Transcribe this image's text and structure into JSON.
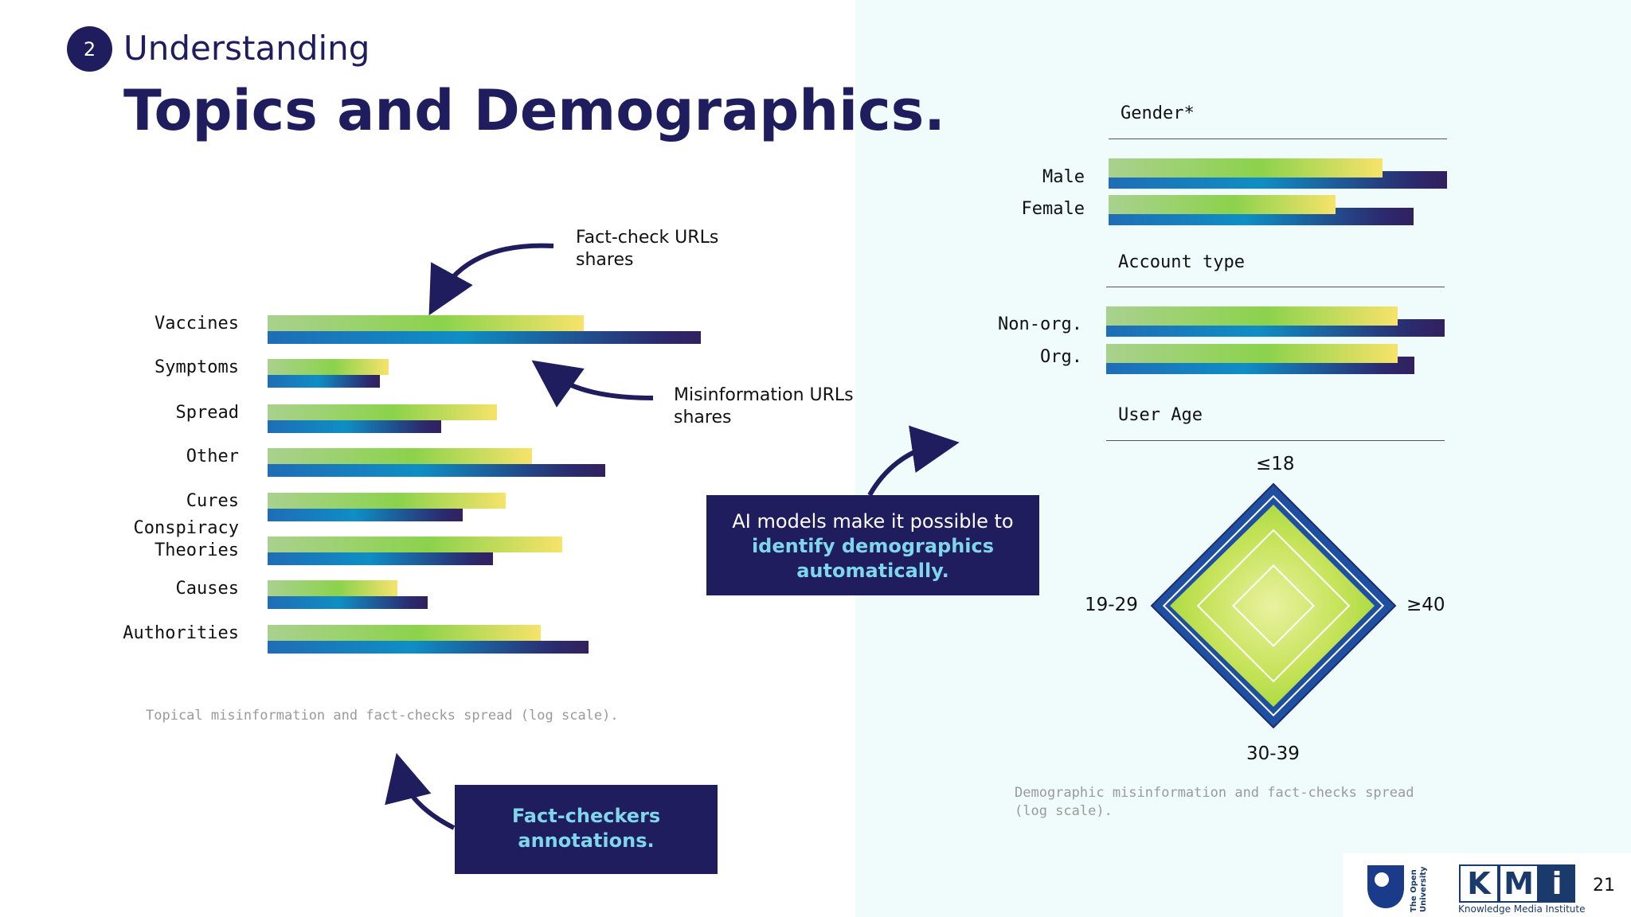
{
  "header": {
    "step_number": "2",
    "kicker": "Understanding",
    "title": "Topics and Demographics."
  },
  "topics_chart": {
    "callout_fact": [
      "Fact-check URLs",
      "shares"
    ],
    "callout_mis": [
      "Misinformation URLs",
      "shares"
    ],
    "caption": "Topical misinformation and fact-checks spread (log scale)."
  },
  "demographics": {
    "gender_heading": "Gender*",
    "account_heading": "Account type",
    "age_heading": "User Age",
    "caption_lines": [
      "Demographic misinformation and fact-checks spread",
      "(log scale)."
    ]
  },
  "age_radar": {
    "axes": [
      "≤18",
      "≥40",
      "30-39",
      "19-29"
    ],
    "outer_values": [
      1,
      1,
      1,
      1
    ],
    "inner_values": [
      0.83,
      0.83,
      0.83,
      0.85
    ]
  },
  "boxes": {
    "ai": {
      "line1": "AI models make it possible to",
      "line2": "identify demographics",
      "line3": "automatically."
    },
    "fact": {
      "line1": "Fact-checkers",
      "line2": "annotations."
    }
  },
  "footer": {
    "ou_name": "The Open University",
    "kmi_letters": [
      "K",
      "M",
      "i"
    ],
    "kmi_sub": "Knowledge Media Institute",
    "page": "21"
  },
  "colors": {
    "navy": "#1f1d5e",
    "highlight": "#7fd6ea",
    "panel": "#effcfb"
  },
  "chart_data": [
    {
      "type": "bar",
      "orientation": "horizontal",
      "categories": [
        "Vaccines",
        "Symptoms",
        "Spread",
        "Other",
        "Cures",
        "Conspiracy\nTheories",
        "Causes",
        "Authorities"
      ],
      "series": [
        {
          "name": "Fact-check URLs shares",
          "values": [
            0.73,
            0.28,
            0.53,
            0.61,
            0.55,
            0.68,
            0.3,
            0.63
          ]
        },
        {
          "name": "Misinformation URLs shares",
          "values": [
            1.0,
            0.26,
            0.4,
            0.78,
            0.45,
            0.52,
            0.37,
            0.74
          ]
        }
      ],
      "scale": "log",
      "xlim": [
        0,
        1
      ]
    },
    {
      "type": "bar",
      "orientation": "horizontal",
      "categories": [
        "Male",
        "Female",
        "Non-org.",
        "Org."
      ],
      "groups": [
        "Gender*",
        "Gender*",
        "Account type",
        "Account type"
      ],
      "series": [
        {
          "name": "Fact-check URLs shares",
          "values": [
            0.81,
            0.67,
            0.86,
            0.86
          ]
        },
        {
          "name": "Misinformation URLs shares",
          "values": [
            1.0,
            0.9,
            1.0,
            0.91
          ]
        }
      ],
      "scale": "log",
      "xlim": [
        0,
        1
      ]
    }
  ]
}
